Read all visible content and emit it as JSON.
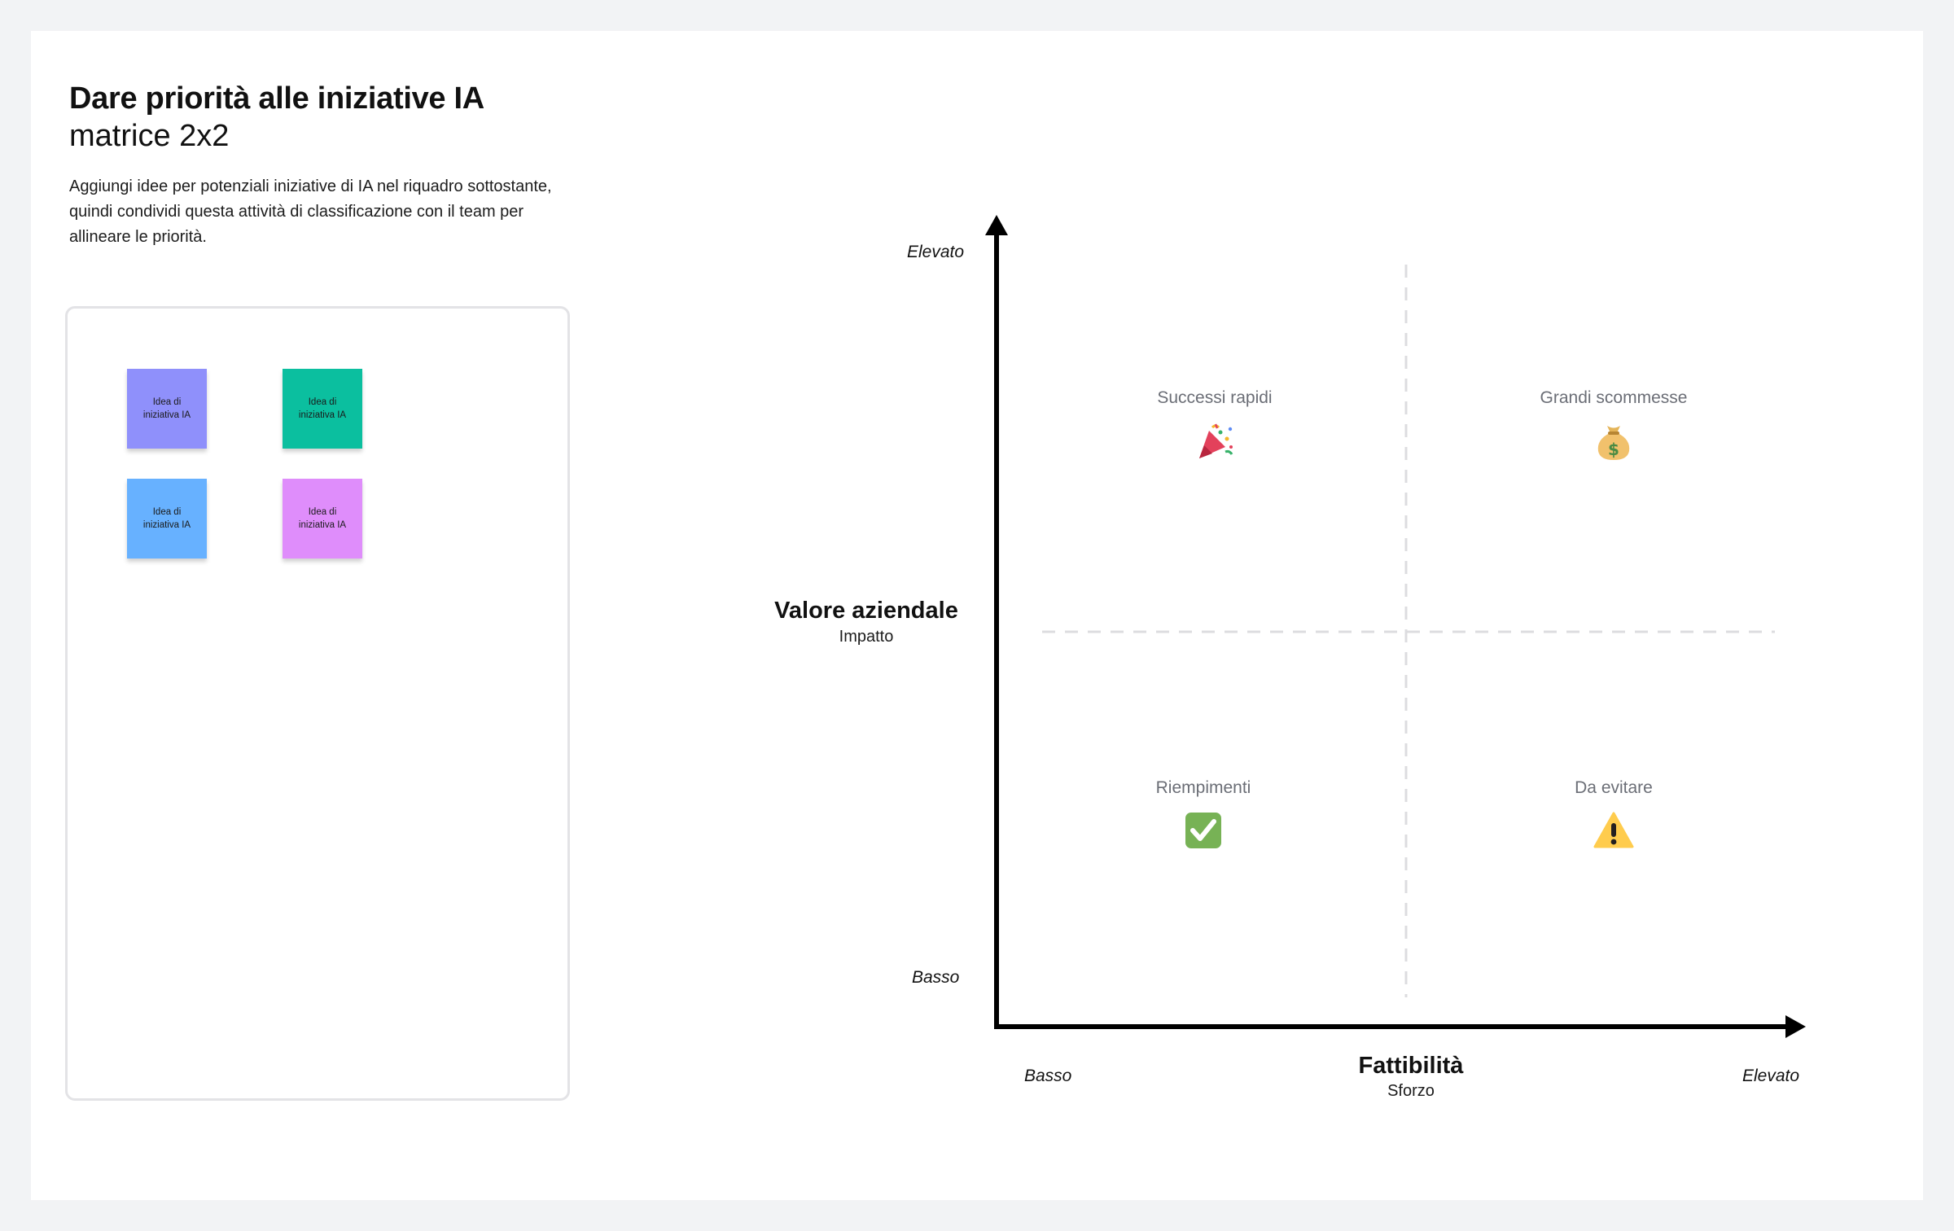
{
  "header": {
    "title": "Dare priorità alle iniziative IA",
    "subtitle": "matrice 2x2",
    "description": "Aggiungi idee per potenziali iniziative di IA nel riquadro sottostante, quindi condividi questa attività di classificazione con il team per allineare le priorità."
  },
  "stickies": [
    {
      "text": "Idea di iniziativa IA",
      "color": "#8f90fb"
    },
    {
      "text": "Idea di iniziativa IA",
      "color": "#0bbf9f"
    },
    {
      "text": "Idea di iniziativa IA",
      "color": "#67b1ff"
    },
    {
      "text": "Idea di iniziativa IA",
      "color": "#df8dfb"
    }
  ],
  "matrix": {
    "y_axis": {
      "title": "Valore aziendale",
      "subtitle": "Impatto",
      "high": "Elevato",
      "low": "Basso"
    },
    "x_axis": {
      "title": "Fattibilità",
      "subtitle": "Sforzo",
      "low": "Basso",
      "high": "Elevato"
    },
    "quadrants": {
      "top_left": {
        "label": "Successi rapidi",
        "icon": "party-popper-icon"
      },
      "top_right": {
        "label": "Grandi scommesse",
        "icon": "money-bag-icon"
      },
      "bottom_left": {
        "label": "Riempimenti",
        "icon": "check-mark-icon"
      },
      "bottom_right": {
        "label": "Da evitare",
        "icon": "warning-icon"
      }
    }
  }
}
